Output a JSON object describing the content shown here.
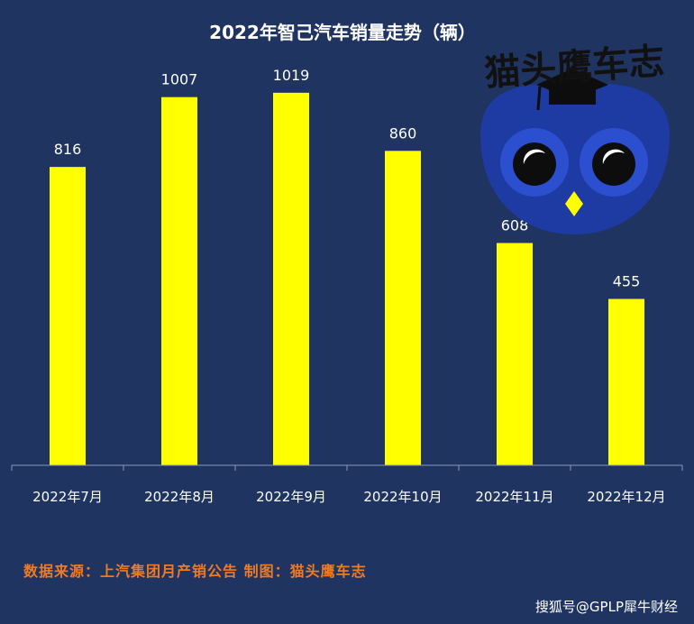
{
  "chart_data": {
    "type": "bar",
    "title": "2022年智己汽车销量走势（辆）",
    "categories": [
      "2022年7月",
      "2022年8月",
      "2022年9月",
      "2022年10月",
      "2022年11月",
      "2022年12月"
    ],
    "values": [
      816,
      1007,
      1019,
      860,
      608,
      455
    ],
    "data_labels": [
      "816",
      "1007",
      "1019",
      "860",
      "608",
      "455"
    ],
    "xlabel": "",
    "ylabel": "",
    "ylim": [
      0,
      1100
    ],
    "grid": false,
    "legend": "none"
  },
  "footer": {
    "source": "数据来源：上汽集团月产销公告    制图：猫头鹰车志",
    "watermark": "搜狐号@GPLP犀牛财经"
  },
  "logo": {
    "text": "猫头鹰车志",
    "icon": "owl-with-graduation-cap-icon"
  },
  "colors": {
    "background": "#1f3461",
    "bar": "#ffff00",
    "source_text": "#f07a23",
    "owl_body": "#1e3aa3",
    "owl_beak": "#ffff00"
  }
}
